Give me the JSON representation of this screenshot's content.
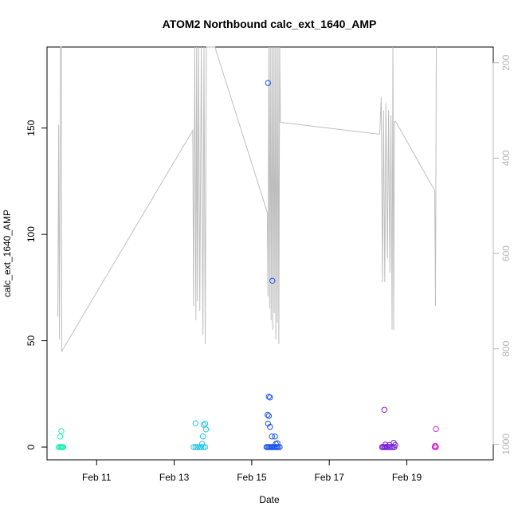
{
  "chart_data": {
    "type": "scatter",
    "title": "ATOM2 Northbound calc_ext_1640_AMP",
    "xlabel": "Date",
    "ylabel": "calc_ext_1640_AMP",
    "x_ticks": [
      "Feb 11",
      "Feb 13",
      "Feb 15",
      "Feb 17",
      "Feb 19"
    ],
    "x_tick_days": [
      11,
      13,
      15,
      17,
      19
    ],
    "xlim_days": [
      9.72,
      21.23
    ],
    "ylim": [
      0,
      177
    ],
    "y_ticks": [
      0,
      50,
      100,
      150
    ],
    "y2_ticks": [
      200,
      400,
      600,
      800,
      1000
    ],
    "y2lim_reversed": [
      1006,
      167
    ],
    "grid": false,
    "line_series_color": "#bebebe",
    "scatter_points": [
      {
        "d": 10.02,
        "v": 0,
        "c": "#21f0b6"
      },
      {
        "d": 10.05,
        "v": 0,
        "c": "#21f0b6"
      },
      {
        "d": 10.08,
        "v": 0,
        "c": "#21f0b6"
      },
      {
        "d": 10.1,
        "v": 0,
        "c": "#21f0b6"
      },
      {
        "d": 10.12,
        "v": 0,
        "c": "#21f0b6"
      },
      {
        "d": 10.14,
        "v": 0,
        "c": "#21f0b6"
      },
      {
        "d": 10.06,
        "v": 5,
        "c": "#21f0b6"
      },
      {
        "d": 10.09,
        "v": 7.5,
        "c": "#21f0b6"
      },
      {
        "d": 13.5,
        "v": 0,
        "c": "#1fc8e6"
      },
      {
        "d": 13.55,
        "v": 0,
        "c": "#1fc8e6"
      },
      {
        "d": 13.6,
        "v": 0,
        "c": "#1fc8e6"
      },
      {
        "d": 13.65,
        "v": 0,
        "c": "#1fc8e6"
      },
      {
        "d": 13.7,
        "v": 0,
        "c": "#1fc8e6"
      },
      {
        "d": 13.75,
        "v": 0,
        "c": "#1fc8e6"
      },
      {
        "d": 13.8,
        "v": 0,
        "c": "#1fc8e6"
      },
      {
        "d": 13.72,
        "v": 1.5,
        "c": "#1fc8e6"
      },
      {
        "d": 13.74,
        "v": 5,
        "c": "#1fc8e6"
      },
      {
        "d": 13.55,
        "v": 11.2,
        "c": "#1fc8e6"
      },
      {
        "d": 13.76,
        "v": 10.5,
        "c": "#1fc8e6"
      },
      {
        "d": 13.8,
        "v": 11,
        "c": "#1fc8e6"
      },
      {
        "d": 13.82,
        "v": 8.3,
        "c": "#1fc8e6"
      },
      {
        "d": 15.38,
        "v": 0,
        "c": "#1a53ea"
      },
      {
        "d": 15.41,
        "v": 0,
        "c": "#1a53ea"
      },
      {
        "d": 15.44,
        "v": 0,
        "c": "#1a53ea"
      },
      {
        "d": 15.47,
        "v": 0,
        "c": "#1a53ea"
      },
      {
        "d": 15.5,
        "v": 0,
        "c": "#1a53ea"
      },
      {
        "d": 15.53,
        "v": 0,
        "c": "#1a53ea"
      },
      {
        "d": 15.56,
        "v": 0,
        "c": "#1a53ea"
      },
      {
        "d": 15.59,
        "v": 0,
        "c": "#1a53ea"
      },
      {
        "d": 15.62,
        "v": 0,
        "c": "#1a53ea"
      },
      {
        "d": 15.65,
        "v": 0,
        "c": "#1a53ea"
      },
      {
        "d": 15.68,
        "v": 0,
        "c": "#1a53ea"
      },
      {
        "d": 15.72,
        "v": 0,
        "c": "#1a53ea"
      },
      {
        "d": 15.62,
        "v": 1.5,
        "c": "#1a53ea"
      },
      {
        "d": 15.66,
        "v": 1.8,
        "c": "#1a53ea"
      },
      {
        "d": 15.52,
        "v": 5,
        "c": "#1a53ea"
      },
      {
        "d": 15.6,
        "v": 5,
        "c": "#1a53ea"
      },
      {
        "d": 15.47,
        "v": 9.5,
        "c": "#1a53ea"
      },
      {
        "d": 15.42,
        "v": 11,
        "c": "#1a53ea"
      },
      {
        "d": 15.41,
        "v": 15.2,
        "c": "#1a53ea"
      },
      {
        "d": 15.44,
        "v": 14.6,
        "c": "#1a53ea"
      },
      {
        "d": 15.44,
        "v": 23.7,
        "c": "#1a53ea"
      },
      {
        "d": 15.47,
        "v": 23.3,
        "c": "#1a53ea"
      },
      {
        "d": 15.53,
        "v": 78.2,
        "c": "#1a53ea"
      },
      {
        "d": 15.42,
        "v": 171.2,
        "c": "#1a53ea"
      },
      {
        "d": 18.36,
        "v": 0,
        "c": "#7a1cd8"
      },
      {
        "d": 18.39,
        "v": 0,
        "c": "#7a1cd8"
      },
      {
        "d": 18.42,
        "v": 0,
        "c": "#7a1cd8"
      },
      {
        "d": 18.45,
        "v": 0,
        "c": "#7a1cd8"
      },
      {
        "d": 18.48,
        "v": 0,
        "c": "#7a1cd8"
      },
      {
        "d": 18.52,
        "v": 0,
        "c": "#7a1cd8"
      },
      {
        "d": 18.56,
        "v": 0,
        "c": "#7a1cd8"
      },
      {
        "d": 18.6,
        "v": 0,
        "c": "#7a1cd8"
      },
      {
        "d": 18.64,
        "v": 0,
        "c": "#7a1cd8"
      },
      {
        "d": 18.68,
        "v": 0,
        "c": "#7a1cd8"
      },
      {
        "d": 18.45,
        "v": 1.2,
        "c": "#7a1cd8"
      },
      {
        "d": 18.55,
        "v": 1.0,
        "c": "#7a1cd8"
      },
      {
        "d": 18.66,
        "v": 2.0,
        "c": "#7a1cd8"
      },
      {
        "d": 18.7,
        "v": 1.0,
        "c": "#7a1cd8"
      },
      {
        "d": 18.42,
        "v": 17.5,
        "c": "#7a1cd8"
      },
      {
        "d": 19.72,
        "v": 0,
        "c": "#d41fe0"
      },
      {
        "d": 19.75,
        "v": 0,
        "c": "#d41fe0"
      },
      {
        "d": 19.73,
        "v": 0.6,
        "c": "#d41fe0"
      },
      {
        "d": 19.75,
        "v": 8.5,
        "c": "#d41fe0"
      }
    ],
    "line_points": [
      {
        "d": 10.0,
        "v": 732
      },
      {
        "d": 10.02,
        "v": 330
      },
      {
        "d": 10.04,
        "v": 780
      },
      {
        "d": 10.07,
        "v": 167
      },
      {
        "d": 10.09,
        "v": 167
      },
      {
        "d": 10.1,
        "v": 805
      },
      {
        "d": 13.48,
        "v": 342
      },
      {
        "d": 13.5,
        "v": 710
      },
      {
        "d": 13.53,
        "v": 167
      },
      {
        "d": 13.56,
        "v": 740
      },
      {
        "d": 13.58,
        "v": 167
      },
      {
        "d": 13.6,
        "v": 700
      },
      {
        "d": 13.63,
        "v": 167
      },
      {
        "d": 13.66,
        "v": 720
      },
      {
        "d": 13.7,
        "v": 167
      },
      {
        "d": 13.74,
        "v": 770
      },
      {
        "d": 13.77,
        "v": 167
      },
      {
        "d": 13.8,
        "v": 790
      },
      {
        "d": 13.83,
        "v": 167
      },
      {
        "d": 14.05,
        "v": 167
      },
      {
        "d": 15.4,
        "v": 514
      },
      {
        "d": 15.42,
        "v": 690
      },
      {
        "d": 15.44,
        "v": 167
      },
      {
        "d": 15.46,
        "v": 715
      },
      {
        "d": 15.48,
        "v": 167
      },
      {
        "d": 15.5,
        "v": 740
      },
      {
        "d": 15.52,
        "v": 167
      },
      {
        "d": 15.54,
        "v": 760
      },
      {
        "d": 15.56,
        "v": 167
      },
      {
        "d": 15.58,
        "v": 725
      },
      {
        "d": 15.6,
        "v": 167
      },
      {
        "d": 15.62,
        "v": 780
      },
      {
        "d": 15.64,
        "v": 167
      },
      {
        "d": 15.66,
        "v": 745
      },
      {
        "d": 15.68,
        "v": 167
      },
      {
        "d": 15.7,
        "v": 790
      },
      {
        "d": 15.72,
        "v": 167
      },
      {
        "d": 15.74,
        "v": 325
      },
      {
        "d": 18.3,
        "v": 350
      },
      {
        "d": 18.34,
        "v": 272
      },
      {
        "d": 18.37,
        "v": 660
      },
      {
        "d": 18.4,
        "v": 300
      },
      {
        "d": 18.43,
        "v": 660
      },
      {
        "d": 18.46,
        "v": 285
      },
      {
        "d": 18.5,
        "v": 610
      },
      {
        "d": 18.53,
        "v": 300
      },
      {
        "d": 18.56,
        "v": 640
      },
      {
        "d": 18.59,
        "v": 310
      },
      {
        "d": 18.62,
        "v": 760
      },
      {
        "d": 18.64,
        "v": 167
      },
      {
        "d": 18.66,
        "v": 760
      },
      {
        "d": 18.68,
        "v": 323
      },
      {
        "d": 18.71,
        "v": 323
      },
      {
        "d": 19.72,
        "v": 468
      },
      {
        "d": 19.74,
        "v": 710
      },
      {
        "d": 19.76,
        "v": 167
      }
    ]
  }
}
